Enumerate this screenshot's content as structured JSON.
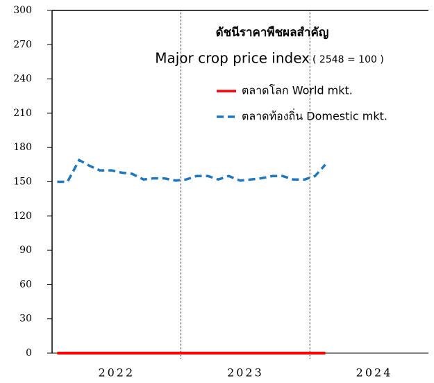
{
  "chart_data": {
    "type": "line",
    "title": "ดัชนีราคาพืชผลสำคัญ",
    "subtitle": "Major crop price index",
    "subtitle_note": "( 2548 = 100 )",
    "x": [
      2022.04,
      2022.12,
      2022.21,
      2022.29,
      2022.37,
      2022.46,
      2022.54,
      2022.62,
      2022.71,
      2022.79,
      2022.87,
      2022.96,
      2023.04,
      2023.12,
      2023.21,
      2023.29,
      2023.37,
      2023.46,
      2023.54,
      2023.62,
      2023.71,
      2023.79,
      2023.87,
      2023.96,
      2024.04,
      2024.12
    ],
    "series": [
      {
        "name": "ตลาดโลก World mkt.",
        "color": "#ff0000",
        "dash": false,
        "values": [
          0,
          0,
          0,
          0,
          0,
          0,
          0,
          0,
          0,
          0,
          0,
          0,
          0,
          0,
          0,
          0,
          0,
          0,
          0,
          0,
          0,
          0,
          0,
          0,
          0,
          0
        ]
      },
      {
        "name": "ตลาดท้องถิ่น Domestic mkt.",
        "color": "#1f77c0",
        "dash": true,
        "values": [
          150,
          150,
          169,
          164,
          160,
          160,
          158,
          157,
          152,
          153,
          153,
          151,
          152,
          155,
          155,
          152,
          155,
          151,
          152,
          153,
          155,
          155,
          152,
          152,
          155,
          165
        ]
      }
    ],
    "xlim": [
      2022,
      2024.92
    ],
    "xticks": [
      {
        "value": 2022.5,
        "label": "2022"
      },
      {
        "value": 2023.5,
        "label": "2023"
      },
      {
        "value": 2024.5,
        "label": "2024"
      }
    ],
    "xlines": [
      2023,
      2024
    ],
    "ylim": [
      0,
      300
    ],
    "yticks": [
      0,
      30,
      60,
      90,
      120,
      150,
      180,
      210,
      240,
      270,
      300
    ]
  }
}
